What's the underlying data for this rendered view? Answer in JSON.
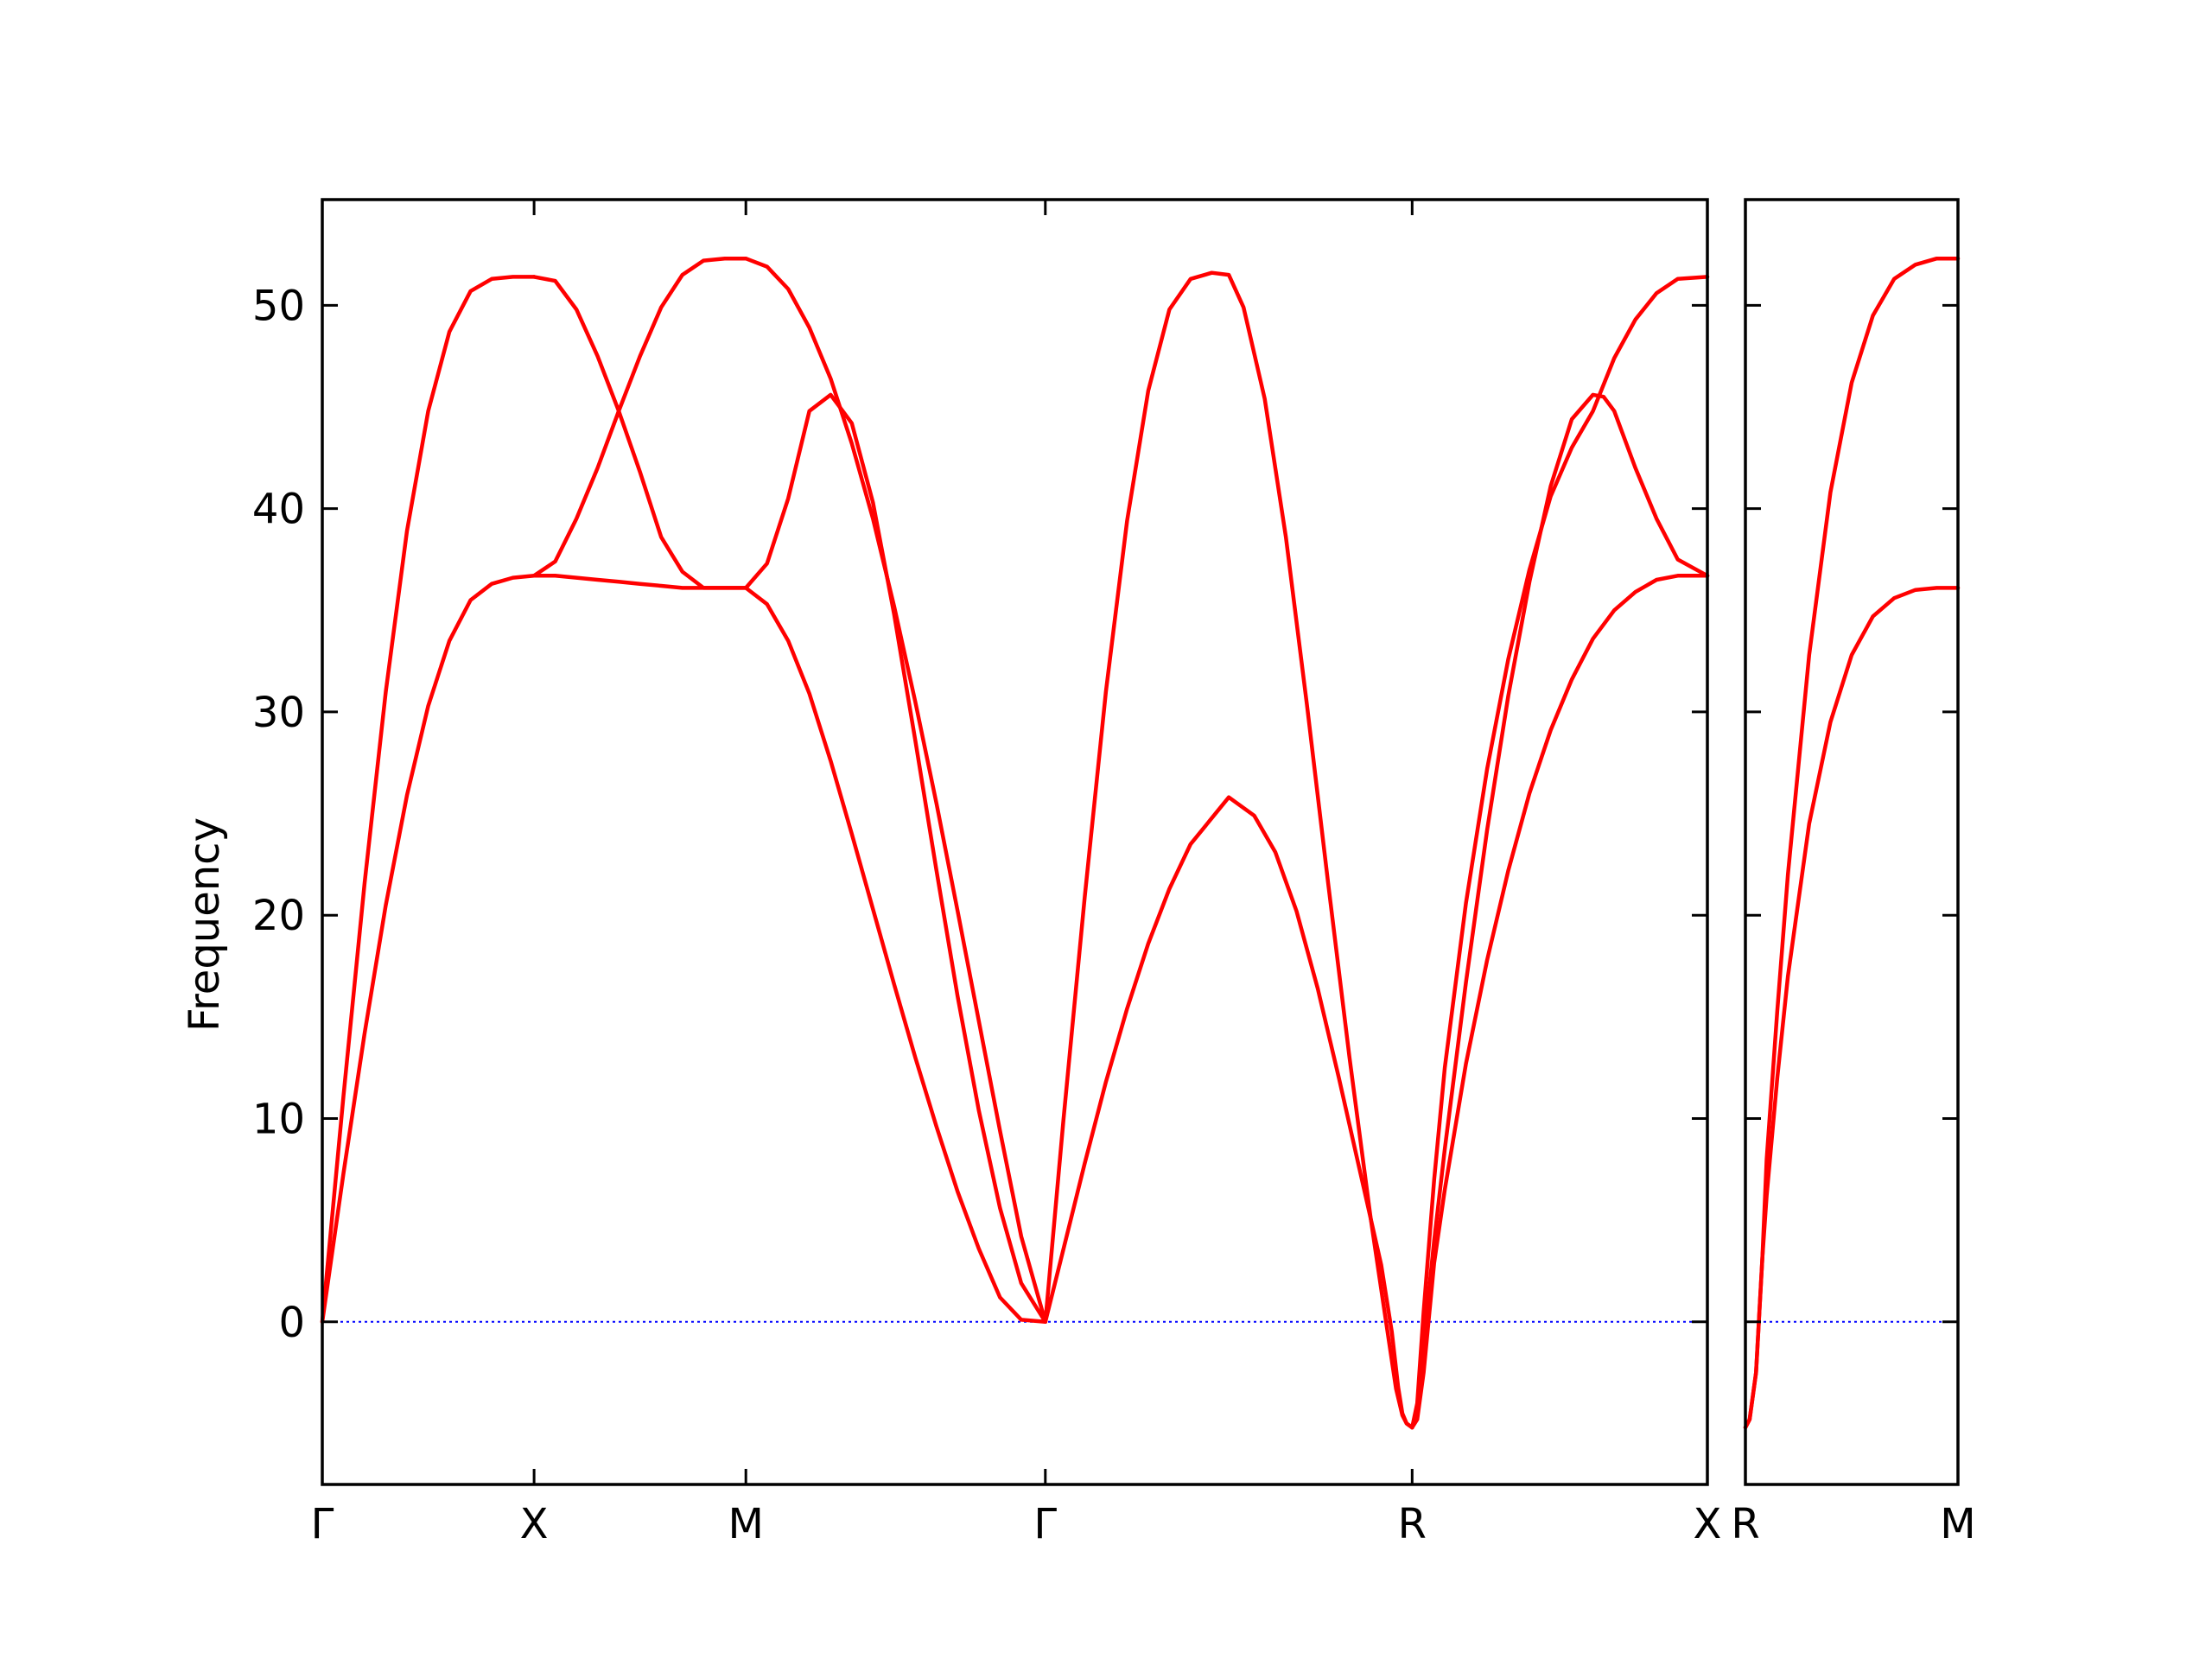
{
  "chart_data": {
    "type": "line",
    "ylabel": "Frequency",
    "ylim": [
      -8,
      55.2
    ],
    "yticks": [
      0,
      10,
      20,
      30,
      40,
      50
    ],
    "grid": false,
    "colors": {
      "bands": "#ff0000",
      "zero_line": "#0000ff",
      "axes": "#000000"
    },
    "zero_line_style": "dotted",
    "panels": [
      {
        "xlim": [
          0,
          6.54
        ],
        "xticks": [
          {
            "pos": 0,
            "label": "Γ"
          },
          {
            "pos": 1.0,
            "label": "X"
          },
          {
            "pos": 2.0,
            "label": "M"
          },
          {
            "pos": 3.414,
            "label": "Γ"
          },
          {
            "pos": 5.146,
            "label": "R"
          },
          {
            "pos": 6.54,
            "label": "X"
          }
        ],
        "series": [
          {
            "x": [
              0,
              0.1,
              0.2,
              0.3,
              0.4,
              0.5,
              0.6,
              0.7,
              0.8,
              0.9,
              1.0
            ],
            "y": [
              0,
              7.3,
              14.2,
              20.5,
              25.9,
              30.3,
              33.5,
              35.5,
              36.3,
              36.6,
              36.7
            ]
          },
          {
            "x": [
              0,
              0.1,
              0.2,
              0.3,
              0.4,
              0.5,
              0.6,
              0.7,
              0.8,
              0.9,
              1.0
            ],
            "y": [
              0,
              11.1,
              21.6,
              31.0,
              38.9,
              44.8,
              48.7,
              50.7,
              51.3,
              51.4,
              51.4
            ]
          },
          {
            "x": [
              1.0,
              1.1,
              1.2,
              1.3,
              1.4,
              1.5,
              1.6,
              1.7,
              1.8,
              1.9,
              2.0
            ],
            "y": [
              36.7,
              36.7,
              36.6,
              36.5,
              36.4,
              36.3,
              36.2,
              36.1,
              36.1,
              36.1,
              36.1
            ]
          },
          {
            "x": [
              1.0,
              1.1,
              1.2,
              1.3,
              1.4,
              1.5,
              1.6,
              1.7,
              1.8,
              1.9,
              2.0
            ],
            "y": [
              36.7,
              37.4,
              39.5,
              42.0,
              44.8,
              41.8,
              38.6,
              36.9,
              36.1,
              36.1,
              36.1
            ]
          },
          {
            "x": [
              1.0,
              1.1,
              1.2,
              1.3,
              1.4,
              1.5,
              1.6,
              1.7,
              1.8,
              1.9,
              2.0
            ],
            "y": [
              51.4,
              51.2,
              49.8,
              47.5,
              44.8,
              47.5,
              49.9,
              51.5,
              52.2,
              52.3,
              52.3
            ]
          },
          {
            "x": [
              2.0,
              2.1,
              2.2,
              2.3,
              2.4,
              2.5,
              2.6,
              2.7,
              2.8,
              2.9,
              3.0,
              3.1,
              3.2,
              3.3,
              3.414
            ],
            "y": [
              36.1,
              35.3,
              33.5,
              30.9,
              27.6,
              24.0,
              20.3,
              16.6,
              13.0,
              9.6,
              6.4,
              3.6,
              1.2,
              0.1,
              0
            ]
          },
          {
            "x": [
              2.0,
              2.1,
              2.2,
              2.3,
              2.4,
              2.5,
              2.6,
              2.7,
              2.8,
              2.9,
              3.0,
              3.1,
              3.2,
              3.3,
              3.414
            ],
            "y": [
              52.3,
              51.9,
              50.8,
              48.9,
              46.4,
              43.2,
              39.5,
              35.2,
              30.5,
              25.5,
              20.2,
              14.8,
              9.4,
              4.2,
              0
            ]
          },
          {
            "x": [
              2.0,
              2.1,
              2.2,
              2.3,
              2.4,
              2.5,
              2.6,
              2.7,
              2.8,
              2.9,
              3.0,
              3.1,
              3.2,
              3.3,
              3.414
            ],
            "y": [
              36.1,
              37.3,
              40.5,
              44.8,
              45.6,
              44.2,
              40.3,
              34.8,
              28.6,
              22.2,
              16.0,
              10.4,
              5.6,
              1.9,
              0
            ]
          },
          {
            "x": [
              3.414,
              3.5,
              3.6,
              3.7,
              3.8,
              3.9,
              4.0,
              4.1,
              4.28,
              4.4,
              4.5,
              4.6,
              4.7,
              4.8,
              4.9,
              5.0,
              5.05,
              5.08,
              5.1,
              5.12,
              5.146
            ],
            "y": [
              0,
              3.6,
              7.8,
              11.8,
              15.4,
              18.6,
              21.3,
              23.5,
              25.8,
              24.9,
              23.1,
              20.2,
              16.4,
              12.0,
              7.4,
              2.8,
              -0.5,
              -3.2,
              -4.5,
              -5.0,
              -5.2
            ]
          },
          {
            "x": [
              3.414,
              3.5,
              3.6,
              3.7,
              3.8,
              3.9,
              4.0,
              4.1,
              4.2,
              4.28,
              4.35,
              4.45,
              4.55,
              4.65,
              4.75,
              4.85,
              4.95,
              5.02,
              5.07,
              5.1,
              5.12,
              5.146
            ],
            "y": [
              0,
              10.0,
              20.9,
              31.0,
              39.4,
              45.8,
              49.8,
              51.3,
              51.6,
              51.5,
              49.9,
              45.4,
              38.6,
              30.3,
              21.5,
              13.0,
              5.1,
              0.2,
              -3.3,
              -4.6,
              -5.0,
              -5.2
            ]
          },
          {
            "x": [
              5.146,
              5.17,
              5.2,
              5.25,
              5.3,
              5.4,
              5.5,
              5.6,
              5.7,
              5.8,
              5.9,
              6.0,
              6.1,
              6.2,
              6.3,
              6.4,
              6.54
            ],
            "y": [
              -5.2,
              -4.8,
              -2.5,
              2.9,
              6.5,
              12.7,
              17.8,
              22.2,
              26.0,
              29.1,
              31.6,
              33.6,
              35.0,
              35.9,
              36.5,
              36.7,
              36.7
            ]
          },
          {
            "x": [
              5.146,
              5.17,
              5.2,
              5.25,
              5.3,
              5.4,
              5.5,
              5.6,
              5.7,
              5.8,
              5.9,
              6.0,
              6.05,
              6.1,
              6.2,
              6.3,
              6.4,
              6.54
            ],
            "y": [
              -5.2,
              -4.5,
              -1.0,
              4.0,
              8.5,
              16.7,
              24.2,
              30.8,
              36.4,
              41.1,
              44.4,
              45.6,
              45.5,
              44.8,
              42.0,
              39.5,
              37.5,
              36.7
            ]
          },
          {
            "x": [
              5.146,
              5.17,
              5.2,
              5.25,
              5.3,
              5.4,
              5.5,
              5.6,
              5.7,
              5.8,
              5.9,
              6.0,
              6.1,
              6.2,
              6.3,
              6.4,
              6.54
            ],
            "y": [
              -5.2,
              -4.0,
              0.5,
              7.0,
              12.5,
              20.6,
              27.2,
              32.6,
              37.0,
              40.6,
              43.0,
              44.8,
              47.4,
              49.3,
              50.6,
              51.3,
              51.4
            ]
          }
        ]
      },
      {
        "xlim": [
          0,
          1
        ],
        "xticks": [
          {
            "pos": 0,
            "label": "R"
          },
          {
            "pos": 1,
            "label": "M"
          }
        ],
        "series": [
          {
            "x": [
              0,
              0.02,
              0.05,
              0.08,
              0.1,
              0.15,
              0.2,
              0.3,
              0.4,
              0.5,
              0.6,
              0.7,
              0.8,
              0.9,
              1.0
            ],
            "y": [
              -5.2,
              -4.8,
              -2.5,
              3.2,
              6.2,
              12.0,
              17.0,
              24.5,
              29.5,
              32.8,
              34.7,
              35.6,
              36.0,
              36.1,
              36.1
            ]
          },
          {
            "x": [
              0,
              0.02,
              0.05,
              0.08,
              0.1,
              0.15,
              0.2,
              0.3,
              0.4,
              0.5,
              0.6,
              0.7,
              0.8,
              0.9,
              1.0
            ],
            "y": [
              -5.2,
              -4.8,
              -2.5,
              3.2,
              8.0,
              15.3,
              22.0,
              32.8,
              40.8,
              46.2,
              49.5,
              51.3,
              52.0,
              52.3,
              52.3
            ]
          }
        ]
      }
    ]
  }
}
